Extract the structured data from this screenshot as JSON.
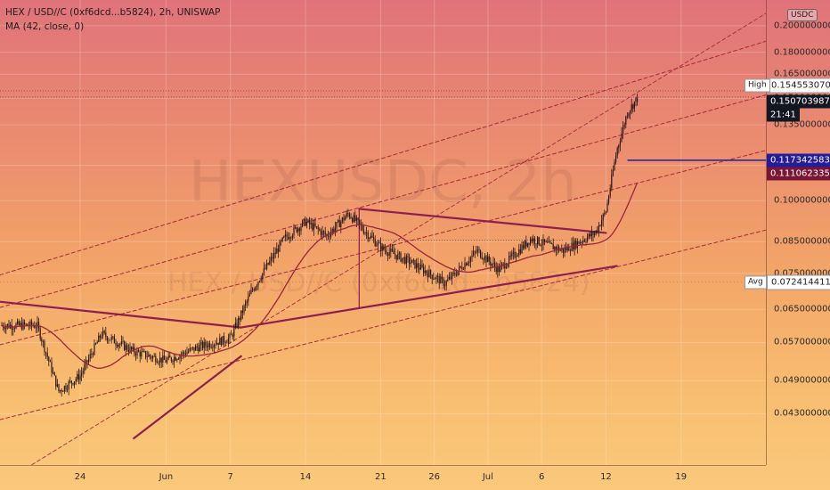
{
  "legend": {
    "symbol_line": "HEX / USD//C (0xf6dcd...b5824), 2h, UNISWAP",
    "ma_line": "MA (42, close, 0)"
  },
  "watermark": {
    "main": "HEXUSDC, 2h",
    "sub": "HEX / USD//C (0xf6dcd...b5824)"
  },
  "currency_badge": "USDC",
  "colors": {
    "bg_top": "#e0737a",
    "bg_bottom": "#fbc97c",
    "candle": "#2b1a1c",
    "ma_line": "#9b2440",
    "trendline": "#8d1e4f",
    "channel_dashed": "#a8283e",
    "flag_last": "#131722",
    "flag_ma": "#7b1535",
    "flag_blue": "#241d9a"
  },
  "price_axis": {
    "ticks": [
      "0.2000000000",
      "0.1800000000",
      "0.1650000000",
      "0.1500000000",
      "0.1350000000",
      "0.1150000000",
      "0.1000000000",
      "0.0850000000",
      "0.0750000000",
      "0.0650000000",
      "0.0570000000",
      "0.0490000000",
      "0.0430000000"
    ],
    "flags": {
      "high_label": "High",
      "high_value": "0.1545530701",
      "last_value": "0.1507039878",
      "countdown": "21:41",
      "blue_value": "0.1173425837",
      "ma_value": "0.1110623354",
      "avg_label": "Avg",
      "avg_value": "0.0724144113"
    }
  },
  "time_axis": {
    "ticks": [
      "24",
      "Jun",
      "7",
      "14",
      "21",
      "26",
      "Jul",
      "6",
      "12",
      "19"
    ]
  },
  "chart_data": {
    "type": "candlestick",
    "title": "HEX / USD//C (0xf6dcd...b5824), 2h, UNISWAP",
    "indicator": "MA (42, close, 0)",
    "log_scale": true,
    "ylim": [
      0.039,
      0.21
    ],
    "x_ticks": [
      "24",
      "Jun",
      "7",
      "14",
      "21",
      "26",
      "Jul",
      "6",
      "12",
      "19"
    ],
    "high": 0.1545530701,
    "last": 0.1507039878,
    "avg": 0.0724144113,
    "ma_last": 0.1110623354,
    "horizontal_level": 0.1173425837,
    "close_path_approx": [
      {
        "date": "May 20",
        "close": 0.061
      },
      {
        "date": "May 22",
        "close": 0.047
      },
      {
        "date": "May 24",
        "close": 0.05
      },
      {
        "date": "May 26",
        "close": 0.059
      },
      {
        "date": "May 29",
        "close": 0.055
      },
      {
        "date": "Jun 1",
        "close": 0.053
      },
      {
        "date": "Jun 4",
        "close": 0.056
      },
      {
        "date": "Jun 7",
        "close": 0.058
      },
      {
        "date": "Jun 9",
        "close": 0.07
      },
      {
        "date": "Jun 12",
        "close": 0.086
      },
      {
        "date": "Jun 14",
        "close": 0.092
      },
      {
        "date": "Jun 16",
        "close": 0.087
      },
      {
        "date": "Jun 18",
        "close": 0.095
      },
      {
        "date": "Jun 21",
        "close": 0.083
      },
      {
        "date": "Jun 24",
        "close": 0.078
      },
      {
        "date": "Jun 27",
        "close": 0.072
      },
      {
        "date": "Jun 30",
        "close": 0.082
      },
      {
        "date": "Jul 2",
        "close": 0.076
      },
      {
        "date": "Jul 5",
        "close": 0.086
      },
      {
        "date": "Jul 8",
        "close": 0.082
      },
      {
        "date": "Jul 11",
        "close": 0.088
      },
      {
        "date": "Jul 12",
        "close": 0.096
      },
      {
        "date": "Jul 13",
        "close": 0.122
      },
      {
        "date": "Jul 14",
        "close": 0.142
      },
      {
        "date": "Jul 15",
        "close": 0.1507
      }
    ]
  }
}
